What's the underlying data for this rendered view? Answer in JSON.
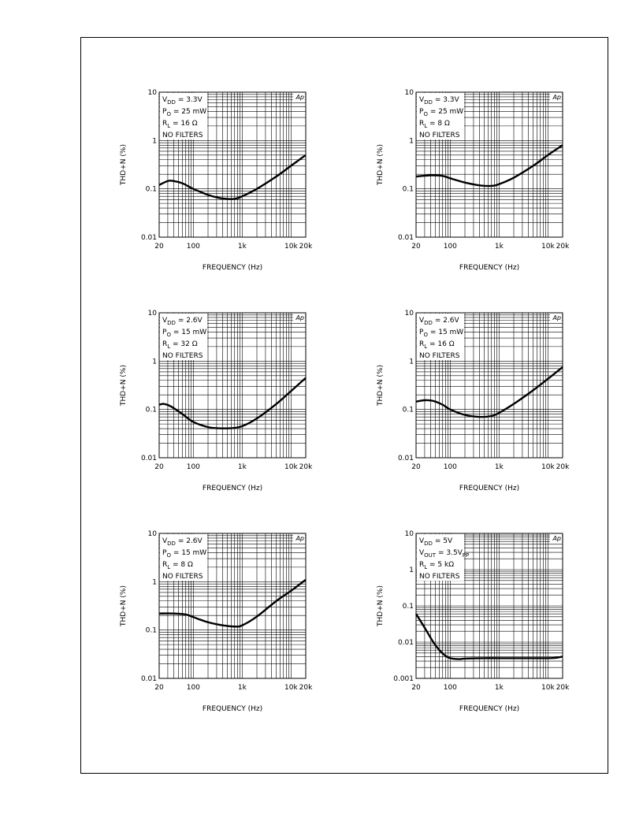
{
  "chart_data": [
    {
      "type": "line",
      "ylabel": "THD+N (%)",
      "xlabel": "FREQUENCY (Hz)",
      "xscale": "log",
      "yscale": "log",
      "xlim": [
        20,
        20000
      ],
      "ylim": [
        0.01,
        10
      ],
      "xticks": [
        {
          "v": 20,
          "label": "20"
        },
        {
          "v": 100,
          "label": "100"
        },
        {
          "v": 1000,
          "label": "1k"
        },
        {
          "v": 10000,
          "label": "10k"
        },
        {
          "v": 20000,
          "label": "20k"
        }
      ],
      "yticks": [
        {
          "v": 0.01,
          "label": "0.01"
        },
        {
          "v": 0.1,
          "label": "0.1"
        },
        {
          "v": 1,
          "label": "1"
        },
        {
          "v": 10,
          "label": "10"
        }
      ],
      "grid": true,
      "logo": "Ap",
      "conditions": [
        {
          "main": "V",
          "sub": "DD",
          "rest": " = 3.3V"
        },
        {
          "main": "P",
          "sub": "O",
          "rest": " = 25 mW"
        },
        {
          "main": "R",
          "sub": "L",
          "rest": " = 16 Ω"
        },
        {
          "main": "NO FILTERS",
          "sub": "",
          "rest": ""
        }
      ],
      "series": [
        {
          "x": [
            20,
            30,
            40,
            60,
            100,
            200,
            400,
            700,
            1000,
            2000,
            5000,
            10000,
            20000
          ],
          "y": [
            0.12,
            0.145,
            0.145,
            0.13,
            0.1,
            0.075,
            0.063,
            0.062,
            0.07,
            0.1,
            0.18,
            0.3,
            0.5
          ]
        }
      ]
    },
    {
      "type": "line",
      "ylabel": "THD+N (%)",
      "xlabel": "FREQUENCY (Hz)",
      "xscale": "log",
      "yscale": "log",
      "xlim": [
        20,
        20000
      ],
      "ylim": [
        0.01,
        10
      ],
      "xticks": [
        {
          "v": 20,
          "label": "20"
        },
        {
          "v": 100,
          "label": "100"
        },
        {
          "v": 1000,
          "label": "1k"
        },
        {
          "v": 10000,
          "label": "10k"
        },
        {
          "v": 20000,
          "label": "20k"
        }
      ],
      "yticks": [
        {
          "v": 0.01,
          "label": "0.01"
        },
        {
          "v": 0.1,
          "label": "0.1"
        },
        {
          "v": 1,
          "label": "1"
        },
        {
          "v": 10,
          "label": "10"
        }
      ],
      "grid": true,
      "logo": "Ap",
      "conditions": [
        {
          "main": "V",
          "sub": "DD",
          "rest": " = 3.3V"
        },
        {
          "main": "P",
          "sub": "O",
          "rest": " = 25 mW"
        },
        {
          "main": "R",
          "sub": "L",
          "rest": " = 8 Ω"
        },
        {
          "main": "NO FILTERS",
          "sub": "",
          "rest": ""
        }
      ],
      "series": [
        {
          "x": [
            20,
            40,
            70,
            100,
            200,
            400,
            700,
            1000,
            2000,
            5000,
            10000,
            20000
          ],
          "y": [
            0.18,
            0.19,
            0.185,
            0.165,
            0.135,
            0.118,
            0.115,
            0.125,
            0.17,
            0.3,
            0.5,
            0.8
          ]
        }
      ]
    },
    {
      "type": "line",
      "ylabel": "THD+N (%)",
      "xlabel": "FREQUENCY (Hz)",
      "xscale": "log",
      "yscale": "log",
      "xlim": [
        20,
        20000
      ],
      "ylim": [
        0.01,
        10
      ],
      "xticks": [
        {
          "v": 20,
          "label": "20"
        },
        {
          "v": 100,
          "label": "100"
        },
        {
          "v": 1000,
          "label": "1k"
        },
        {
          "v": 10000,
          "label": "10k"
        },
        {
          "v": 20000,
          "label": "20k"
        }
      ],
      "yticks": [
        {
          "v": 0.01,
          "label": "0.01"
        },
        {
          "v": 0.1,
          "label": "0.1"
        },
        {
          "v": 1,
          "label": "1"
        },
        {
          "v": 10,
          "label": "10"
        }
      ],
      "grid": true,
      "logo": "Ap",
      "conditions": [
        {
          "main": "V",
          "sub": "DD",
          "rest": " = 2.6V"
        },
        {
          "main": "P",
          "sub": "O",
          "rest": " = 15 mW"
        },
        {
          "main": "R",
          "sub": "L",
          "rest": " = 32 Ω"
        },
        {
          "main": "NO FILTERS",
          "sub": "",
          "rest": ""
        }
      ],
      "series": [
        {
          "x": [
            20,
            25,
            35,
            60,
            100,
            200,
            300,
            600,
            1000,
            2000,
            5000,
            10000,
            20000
          ],
          "y": [
            0.125,
            0.13,
            0.115,
            0.08,
            0.055,
            0.043,
            0.041,
            0.041,
            0.045,
            0.065,
            0.13,
            0.24,
            0.45
          ]
        }
      ]
    },
    {
      "type": "line",
      "ylabel": "THD+N (%)",
      "xlabel": "FREQUENCY (Hz)",
      "xscale": "log",
      "yscale": "log",
      "xlim": [
        20,
        20000
      ],
      "ylim": [
        0.01,
        10
      ],
      "xticks": [
        {
          "v": 20,
          "label": "20"
        },
        {
          "v": 100,
          "label": "100"
        },
        {
          "v": 1000,
          "label": "1k"
        },
        {
          "v": 10000,
          "label": "10k"
        },
        {
          "v": 20000,
          "label": "20k"
        }
      ],
      "yticks": [
        {
          "v": 0.01,
          "label": "0.01"
        },
        {
          "v": 0.1,
          "label": "0.1"
        },
        {
          "v": 1,
          "label": "1"
        },
        {
          "v": 10,
          "label": "10"
        }
      ],
      "grid": true,
      "logo": "Ap",
      "conditions": [
        {
          "main": "V",
          "sub": "DD",
          "rest": " = 2.6V"
        },
        {
          "main": "P",
          "sub": "O",
          "rest": " = 15 mW"
        },
        {
          "main": "R",
          "sub": "L",
          "rest": " = 16 Ω"
        },
        {
          "main": "NO FILTERS",
          "sub": "",
          "rest": ""
        }
      ],
      "series": [
        {
          "x": [
            20,
            30,
            45,
            70,
            100,
            200,
            400,
            700,
            1000,
            2000,
            5000,
            10000,
            20000
          ],
          "y": [
            0.145,
            0.155,
            0.15,
            0.125,
            0.1,
            0.077,
            0.07,
            0.073,
            0.085,
            0.13,
            0.25,
            0.43,
            0.75
          ]
        }
      ]
    },
    {
      "type": "line",
      "ylabel": "THD+N (%)",
      "xlabel": "FREQUENCY (Hz)",
      "xscale": "log",
      "yscale": "log",
      "xlim": [
        20,
        20000
      ],
      "ylim": [
        0.01,
        10
      ],
      "xticks": [
        {
          "v": 20,
          "label": "20"
        },
        {
          "v": 100,
          "label": "100"
        },
        {
          "v": 1000,
          "label": "1k"
        },
        {
          "v": 10000,
          "label": "10k"
        },
        {
          "v": 20000,
          "label": "20k"
        }
      ],
      "yticks": [
        {
          "v": 0.01,
          "label": "0.01"
        },
        {
          "v": 0.1,
          "label": "0.1"
        },
        {
          "v": 1,
          "label": "1"
        },
        {
          "v": 10,
          "label": "10"
        }
      ],
      "grid": true,
      "logo": "Ap",
      "conditions": [
        {
          "main": "V",
          "sub": "DD",
          "rest": " = 2.6V"
        },
        {
          "main": "P",
          "sub": "O",
          "rest": " = 15 mW"
        },
        {
          "main": "R",
          "sub": "L",
          "rest": " = 8 Ω"
        },
        {
          "main": "NO FILTERS",
          "sub": "",
          "rest": ""
        }
      ],
      "series": [
        {
          "x": [
            20,
            40,
            70,
            100,
            200,
            400,
            700,
            1000,
            2000,
            5000,
            10000,
            20000
          ],
          "y": [
            0.22,
            0.22,
            0.21,
            0.185,
            0.145,
            0.125,
            0.118,
            0.125,
            0.19,
            0.4,
            0.65,
            1.1
          ]
        }
      ]
    },
    {
      "type": "line",
      "ylabel": "THD+N (%)",
      "xlabel": "FREQUENCY (Hz)",
      "xscale": "log",
      "yscale": "log",
      "xlim": [
        20,
        20000
      ],
      "ylim": [
        0.001,
        10
      ],
      "xticks": [
        {
          "v": 20,
          "label": "20"
        },
        {
          "v": 100,
          "label": "100"
        },
        {
          "v": 1000,
          "label": "1k"
        },
        {
          "v": 10000,
          "label": "10k"
        },
        {
          "v": 20000,
          "label": "20k"
        }
      ],
      "yticks": [
        {
          "v": 0.001,
          "label": "0.001"
        },
        {
          "v": 0.01,
          "label": "0.01"
        },
        {
          "v": 0.1,
          "label": "0.1"
        },
        {
          "v": 1,
          "label": "1"
        },
        {
          "v": 10,
          "label": "10"
        }
      ],
      "grid": true,
      "logo": "Ap",
      "conditions": [
        {
          "main": "V",
          "sub": "DD",
          "rest": " = 5V"
        },
        {
          "main": "V",
          "sub": "OUT",
          "rest": " = 3.5V",
          "sub2": "PP"
        },
        {
          "main": "R",
          "sub": "L",
          "rest": " = 5 kΩ"
        },
        {
          "main": "NO FILTERS",
          "sub": "",
          "rest": ""
        }
      ],
      "series": [
        {
          "x": [
            20,
            30,
            45,
            60,
            80,
            100,
            150,
            200,
            500,
            1000,
            5000,
            10000,
            15000,
            20000
          ],
          "y": [
            0.06,
            0.025,
            0.01,
            0.006,
            0.0042,
            0.0036,
            0.0034,
            0.0035,
            0.0036,
            0.0036,
            0.0036,
            0.0036,
            0.0037,
            0.004
          ]
        }
      ]
    }
  ]
}
